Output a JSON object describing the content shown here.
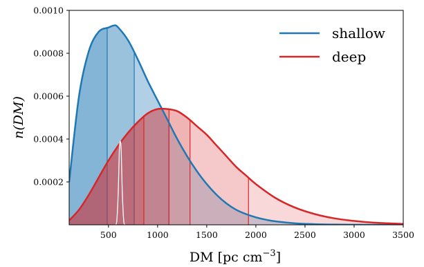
{
  "chart_data": {
    "type": "area",
    "xlabel": "DM [pc cm",
    "xlabel_sup": "−3",
    "xlabel_close": "]",
    "ylabel": "n(DM)",
    "xlim": [
      100,
      3500
    ],
    "ylim": [
      0,
      0.001
    ],
    "xticks": [
      500,
      1000,
      1500,
      2000,
      2500,
      3000,
      3500
    ],
    "yticks": [
      0.0002,
      0.0004,
      0.0006,
      0.0008,
      0.001
    ],
    "ytick_labels": [
      "0.0002",
      "0.0004",
      "0.0006",
      "0.0008",
      "0.0010"
    ],
    "grid": false,
    "legend_placement": "top-right",
    "series": [
      {
        "name": "shallow",
        "color": "#1f77b4",
        "x": [
          100,
          200,
          300,
          400,
          500,
          560,
          600,
          700,
          800,
          900,
          1000,
          1100,
          1200,
          1300,
          1400,
          1500,
          1600,
          1700,
          1800,
          1900,
          2000,
          2100,
          2200,
          2400,
          2600,
          2800,
          3000,
          3200,
          3500
        ],
        "y": [
          0.0002,
          0.0006,
          0.00081,
          0.0009,
          0.00092,
          0.00093,
          0.00092,
          0.00086,
          0.00077,
          0.00067,
          0.00058,
          0.00049,
          0.0004,
          0.00032,
          0.00025,
          0.00019,
          0.00014,
          0.0001,
          7e-05,
          5e-05,
          3.5e-05,
          2.4e-05,
          1.6e-05,
          7e-06,
          3e-06,
          1.2e-06,
          5e-07,
          2e-07,
          0.0
        ],
        "quantiles": [
          487,
          762,
          1116
        ]
      },
      {
        "name": "deep",
        "color": "#d62728",
        "x": [
          100,
          200,
          300,
          400,
          500,
          600,
          700,
          800,
          900,
          1000,
          1100,
          1200,
          1300,
          1400,
          1500,
          1600,
          1700,
          1800,
          1900,
          2000,
          2200,
          2400,
          2600,
          2800,
          3000,
          3200,
          3500
        ],
        "y": [
          2e-05,
          7e-05,
          0.00014,
          0.00022,
          0.0003,
          0.00037,
          0.00043,
          0.00048,
          0.00052,
          0.00054,
          0.00054,
          0.00053,
          0.0005,
          0.00046,
          0.00042,
          0.00037,
          0.00032,
          0.00027,
          0.00023,
          0.00019,
          0.000125,
          8e-05,
          5e-05,
          3e-05,
          1.8e-05,
          1e-05,
          4e-06
        ],
        "quantiles": [
          860,
          1116,
          1330,
          1925
        ]
      },
      {
        "color": "#ffffff",
        "x": [
          570,
          585,
          600,
          610,
          620,
          630,
          640,
          655,
          670
        ],
        "y": [
          0.0,
          2e-05,
          0.00016,
          0.00034,
          0.00039,
          0.00034,
          0.00016,
          2e-05,
          0.0
        ]
      }
    ]
  }
}
